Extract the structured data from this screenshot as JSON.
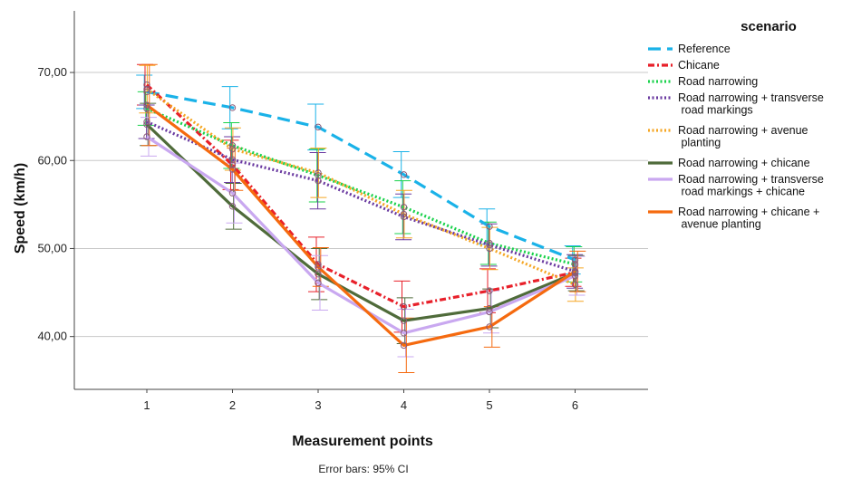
{
  "chart_data": {
    "type": "line",
    "title": "",
    "xlabel": "Measurement points",
    "ylabel": "Speed (km/h)",
    "footnote": "Error bars: 95% CI",
    "legend_title": "scenario",
    "legend_position": "right",
    "grid": true,
    "x": [
      "1",
      "2",
      "3",
      "4",
      "5",
      "6"
    ],
    "ylim": [
      34,
      77
    ],
    "yticks": [
      "40,00",
      "50,00",
      "60,00",
      "70,00"
    ],
    "series": [
      {
        "name": "Reference",
        "color": "#1ab2e8",
        "dash": "14,7",
        "values": [
          67.8,
          66.0,
          63.8,
          58.4,
          52.5,
          48.7
        ],
        "ci": [
          1.9,
          2.4,
          2.6,
          2.6,
          2.0,
          1.6
        ]
      },
      {
        "name": "Chicane",
        "color": "#e8202a",
        "dash": "7,3,2,3",
        "values": [
          68.6,
          59.5,
          48.2,
          43.4,
          45.2,
          47.3
        ],
        "ci": [
          2.3,
          2.8,
          3.1,
          2.9,
          2.5,
          1.6
        ]
      },
      {
        "name": "Road narrowing",
        "color": "#19d24b",
        "dash": "2,2.5",
        "values": [
          65.9,
          61.7,
          58.3,
          54.7,
          50.6,
          48.2
        ],
        "ci": [
          1.9,
          2.6,
          3.0,
          3.0,
          2.4,
          2.0
        ]
      },
      {
        "name": "Road narrowing + transverse road markings",
        "color": "#6a3aa0",
        "dash": "2,2.5",
        "values": [
          64.4,
          60.1,
          57.7,
          53.6,
          50.4,
          47.4
        ],
        "ci": [
          1.9,
          2.6,
          3.2,
          2.6,
          2.4,
          1.9
        ]
      },
      {
        "name": "Road narrowing + avenue planting",
        "color": "#f5a623",
        "dash": "2,2.5",
        "values": [
          68.1,
          61.3,
          58.6,
          53.9,
          50.0,
          45.9
        ],
        "ci": [
          2.7,
          2.4,
          2.8,
          2.7,
          2.4,
          1.9
        ]
      },
      {
        "name": "Road narrowing + chicane",
        "color": "#4f6b3a",
        "dash": "",
        "values": [
          64.1,
          54.8,
          47.1,
          41.8,
          43.2,
          47.2
        ],
        "ci": [
          2.4,
          2.6,
          2.9,
          2.6,
          2.2,
          2.0
        ]
      },
      {
        "name": "Road narrowing + transverse road markings + chicane",
        "color": "#c9a8f0",
        "dash": "",
        "values": [
          62.7,
          56.3,
          46.1,
          40.4,
          42.8,
          46.9
        ],
        "ci": [
          2.2,
          3.4,
          3.1,
          2.7,
          2.4,
          2.2
        ]
      },
      {
        "name": "Road narrowing + chicane + avenue planting",
        "color": "#f56a0f",
        "dash": "",
        "values": [
          66.3,
          59.0,
          47.9,
          39.0,
          41.1,
          47.4
        ],
        "ci": [
          4.6,
          2.4,
          2.2,
          3.1,
          2.3,
          2.3
        ]
      }
    ]
  }
}
